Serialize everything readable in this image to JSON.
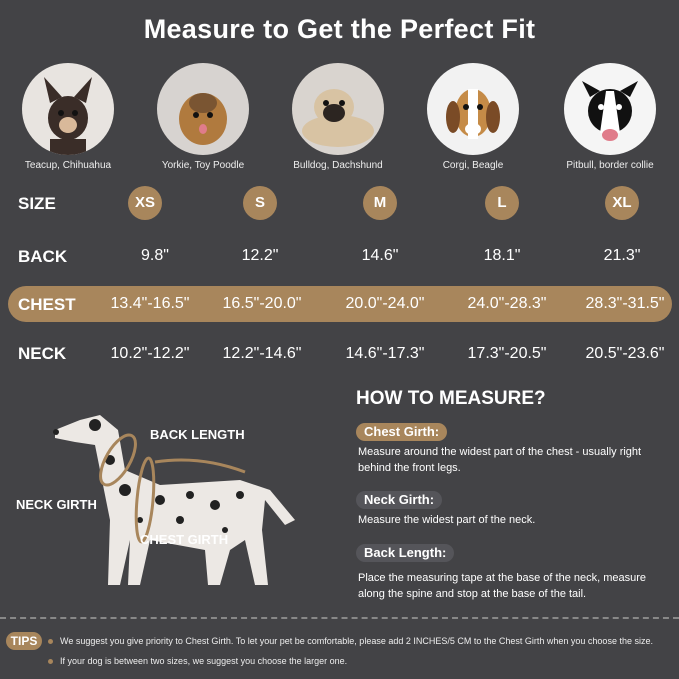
{
  "title": "Measure to Get the Perfect Fit",
  "colors": {
    "background": "#434346",
    "accent": "#a8865c"
  },
  "breeds": [
    {
      "caption": "Teacup, Chihuahua",
      "image": "chihuahua-photo"
    },
    {
      "caption": "Yorkie, Toy Poodle",
      "image": "yorkie-photo"
    },
    {
      "caption": "Bulldog, Dachshund",
      "image": "pug-photo"
    },
    {
      "caption": "Corgi, Beagle",
      "image": "beagle-photo"
    },
    {
      "caption": "Pitbull, border collie",
      "image": "border-collie-photo"
    }
  ],
  "table": {
    "size_label": "SIZE",
    "sizes": [
      "XS",
      "S",
      "M",
      "L",
      "XL"
    ],
    "back_label": "BACK",
    "back": [
      "9.8\"",
      "12.2\"",
      "14.6\"",
      "18.1\"",
      "21.3\""
    ],
    "chest_label": "CHEST",
    "chest": [
      "13.4\"-16.5\"",
      "16.5\"-20.0\"",
      "20.0\"-24.0\"",
      "24.0\"-28.3\"",
      "28.3\"-31.5\""
    ],
    "neck_label": "NECK",
    "neck": [
      "10.2\"-12.2\"",
      "12.2\"-14.6\"",
      "14.6\"-17.3\"",
      "17.3\"-20.5\"",
      "20.5\"-23.6\""
    ]
  },
  "diagram": {
    "back_length": "BACK LENGTH",
    "neck_girth": "NECK GIRTH",
    "chest_girth": "CHEST GIRTH"
  },
  "how": {
    "title": "HOW TO MEASURE?",
    "chest_title": "Chest Girth:",
    "chest_desc": "Measure around the widest part of the chest - usually right behind the front legs.",
    "neck_title": "Neck Girth:",
    "neck_desc": "Measure the widest part of the neck.",
    "back_title": "Back Length:",
    "back_desc": "Place the measuring tape at the base of the neck, measure along the spine and stop at the base of the tail."
  },
  "tips": {
    "label": "TIPS",
    "items": [
      "We suggest you give priority to Chest Girth. To let your pet be comfortable, please add 2 INCHES/5 CM to the Chest Girth when you choose the size.",
      "If your dog is between two sizes, we suggest you choose the larger one."
    ]
  }
}
